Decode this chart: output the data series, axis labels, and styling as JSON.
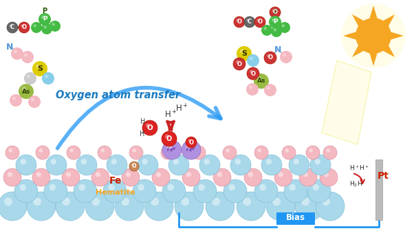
{
  "bg_color": "#ffffff",
  "oxygen_atom_transfer_text": "Oxygen atom transfer",
  "oxygen_atom_transfer_color": "#1a7bbf",
  "hematite_text": "Hematite",
  "hematite_color": "#f5a623",
  "fe_text": "Fe",
  "fe_color": "#cc2200",
  "bias_text": "Bias",
  "bias_bg": "#2196F3",
  "bias_text_color": "#ffffff",
  "pt_text": "Pt",
  "pt_color": "#cc2200",
  "blue_ball_color": "#a8d8ea",
  "pink_ball_color": "#f4b8c1",
  "sun_color": "#f5a623",
  "sun_glow_color": "#fff9c4",
  "red_O_color": "#dd2222",
  "fe_ion_color": "#9966cc",
  "arrow_blue_color": "#2196F3",
  "arrow_red_color": "#cc2222",
  "yellow_glow_color": "#fffde7",
  "electrode_color": "#bbbbbb",
  "electrode_line_color": "#2196F3",
  "N_color": "#5599dd",
  "P_color": "#44bb44",
  "S_color": "#ddcc00",
  "As_color": "#99bb44",
  "C_color": "#777777",
  "pink_atom_color": "#f4b8c1",
  "gray_atom_color": "#cccccc",
  "blue_atom_color": "#87ceeb"
}
